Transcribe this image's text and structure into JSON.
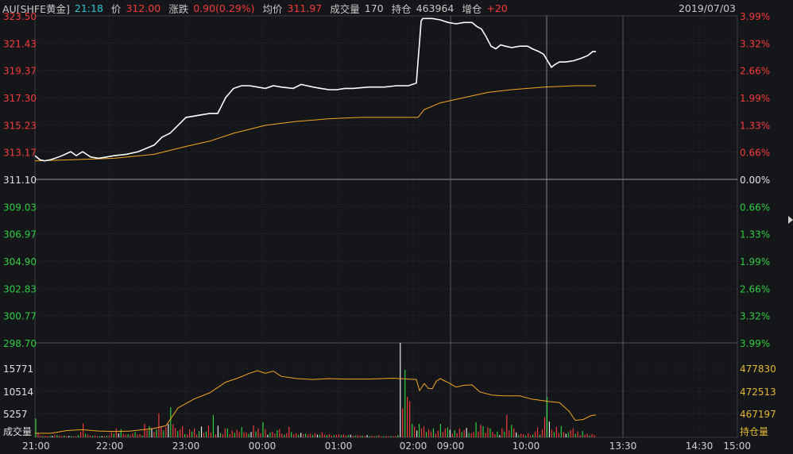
{
  "header": {
    "symbol": "AU[SHFE黄金]",
    "time": "21:18",
    "price_label": "价",
    "price": "312.00",
    "change_label": "涨跌",
    "change": "0.90(0.29%)",
    "avg_label": "均价",
    "avg": "311.97",
    "volume_label": "成交量",
    "volume": "170",
    "oi_label": "持仓",
    "oi": "463964",
    "oi_change_label": "增仓",
    "oi_change": "+20",
    "date": "2019/07/03"
  },
  "colors": {
    "up": "#f23c3c",
    "down": "#2ecc40",
    "flat": "#e8e8e8",
    "price_line": "#ffffff",
    "avg_line": "#f5a623",
    "oi_line": "#f5a623",
    "axis_volume": "#e0b830"
  },
  "chart_data": {
    "type": "line",
    "subtype": "intraday-timeshare",
    "x_ticks": [
      "21:00",
      "22:00",
      "23:00",
      "00:00",
      "01:00",
      "02:00",
      "09:00",
      "10:00",
      "13:30",
      "14:30",
      "15:00"
    ],
    "price_axis": {
      "ylim": [
        298.7,
        323.5
      ],
      "base": 311.1,
      "left_ticks": [
        "323.50",
        "321.43",
        "319.37",
        "317.30",
        "315.23",
        "313.17",
        "311.10",
        "309.03",
        "306.97",
        "304.90",
        "302.83",
        "300.77",
        "298.70"
      ],
      "right_ticks": [
        "3.99%",
        "3.32%",
        "2.66%",
        "1.99%",
        "1.33%",
        "0.66%",
        "0.00%",
        "0.66%",
        "1.33%",
        "1.99%",
        "2.66%",
        "3.32%",
        "3.99%"
      ]
    },
    "volume_axis": {
      "label": "成交量",
      "ticks": [
        "15771",
        "10514",
        "5257"
      ],
      "ylim": [
        0,
        21028
      ]
    },
    "oi_axis": {
      "label": "持仓量",
      "ticks": [
        "477830",
        "472513",
        "467197"
      ],
      "ylim": [
        461880,
        483147
      ]
    },
    "series": [
      {
        "name": "price",
        "points": [
          [
            0,
            312.9
          ],
          [
            6,
            312.6
          ],
          [
            12,
            312.5
          ],
          [
            20,
            312.6
          ],
          [
            30,
            312.8
          ],
          [
            38,
            313.0
          ],
          [
            45,
            313.2
          ],
          [
            52,
            312.9
          ],
          [
            60,
            313.2
          ],
          [
            70,
            312.8
          ],
          [
            80,
            312.7
          ],
          [
            90,
            312.8
          ],
          [
            100,
            312.9
          ],
          [
            115,
            313.0
          ],
          [
            130,
            313.2
          ],
          [
            142,
            313.5
          ],
          [
            150,
            313.7
          ],
          [
            160,
            314.3
          ],
          [
            170,
            314.6
          ],
          [
            180,
            315.2
          ],
          [
            190,
            315.8
          ],
          [
            200,
            315.9
          ],
          [
            210,
            316.0
          ],
          [
            220,
            316.1
          ],
          [
            230,
            316.1
          ],
          [
            240,
            317.3
          ],
          [
            250,
            318.0
          ],
          [
            260,
            318.2
          ],
          [
            270,
            318.2
          ],
          [
            280,
            318.1
          ],
          [
            290,
            318.0
          ],
          [
            300,
            318.2
          ],
          [
            310,
            318.1
          ],
          [
            325,
            318.0
          ],
          [
            335,
            318.3
          ],
          [
            350,
            318.1
          ],
          [
            360,
            318.0
          ],
          [
            370,
            317.9
          ],
          [
            380,
            317.9
          ],
          [
            390,
            318.0
          ],
          [
            400,
            318.0
          ],
          [
            420,
            318.1
          ],
          [
            440,
            318.1
          ],
          [
            455,
            318.2
          ],
          [
            470,
            318.2
          ],
          [
            480,
            318.4
          ],
          [
            482,
            320.0
          ],
          [
            484,
            321.5
          ],
          [
            486,
            323.1
          ],
          [
            488,
            323.3
          ],
          [
            500,
            323.3
          ],
          [
            510,
            323.2
          ],
          [
            520,
            323.0
          ],
          [
            530,
            322.9
          ],
          [
            540,
            323.0
          ],
          [
            550,
            323.0
          ],
          [
            556,
            322.7
          ],
          [
            562,
            322.5
          ],
          [
            568,
            321.9
          ],
          [
            574,
            321.2
          ],
          [
            580,
            321.0
          ],
          [
            586,
            321.3
          ],
          [
            592,
            321.2
          ],
          [
            600,
            321.1
          ],
          [
            610,
            321.2
          ],
          [
            620,
            321.2
          ],
          [
            626,
            321.0
          ],
          [
            634,
            320.8
          ],
          [
            640,
            320.6
          ],
          [
            646,
            320.0
          ],
          [
            650,
            319.6
          ],
          [
            654,
            319.8
          ],
          [
            660,
            320.0
          ],
          [
            668,
            320.0
          ],
          [
            678,
            320.1
          ],
          [
            688,
            320.3
          ],
          [
            696,
            320.5
          ],
          [
            702,
            320.8
          ],
          [
            706,
            320.8
          ]
        ]
      },
      {
        "name": "average",
        "points": [
          [
            0,
            312.5
          ],
          [
            50,
            312.6
          ],
          [
            100,
            312.7
          ],
          [
            150,
            313.0
          ],
          [
            190,
            313.6
          ],
          [
            220,
            314.0
          ],
          [
            250,
            314.6
          ],
          [
            290,
            315.2
          ],
          [
            330,
            315.5
          ],
          [
            370,
            315.7
          ],
          [
            410,
            315.8
          ],
          [
            470,
            315.8
          ],
          [
            482,
            315.8
          ],
          [
            490,
            316.4
          ],
          [
            510,
            316.9
          ],
          [
            540,
            317.3
          ],
          [
            570,
            317.7
          ],
          [
            600,
            317.9
          ],
          [
            640,
            318.1
          ],
          [
            680,
            318.2
          ],
          [
            706,
            318.2
          ]
        ]
      },
      {
        "name": "open_interest",
        "points": [
          [
            0,
            462800
          ],
          [
            20,
            462800
          ],
          [
            40,
            463400
          ],
          [
            60,
            463600
          ],
          [
            80,
            463300
          ],
          [
            100,
            463200
          ],
          [
            120,
            463300
          ],
          [
            150,
            463900
          ],
          [
            165,
            464500
          ],
          [
            180,
            468500
          ],
          [
            200,
            470500
          ],
          [
            220,
            471900
          ],
          [
            240,
            474300
          ],
          [
            255,
            475200
          ],
          [
            270,
            476300
          ],
          [
            280,
            476900
          ],
          [
            290,
            476300
          ],
          [
            300,
            476800
          ],
          [
            310,
            475600
          ],
          [
            330,
            475100
          ],
          [
            350,
            474900
          ],
          [
            370,
            475100
          ],
          [
            390,
            475000
          ],
          [
            420,
            475000
          ],
          [
            450,
            475200
          ],
          [
            470,
            475000
          ],
          [
            480,
            474900
          ],
          [
            484,
            472400
          ],
          [
            490,
            474000
          ],
          [
            495,
            472900
          ],
          [
            500,
            472800
          ],
          [
            505,
            474500
          ],
          [
            510,
            475100
          ],
          [
            520,
            474200
          ],
          [
            530,
            473200
          ],
          [
            540,
            473600
          ],
          [
            550,
            473700
          ],
          [
            560,
            472100
          ],
          [
            575,
            471400
          ],
          [
            590,
            471200
          ],
          [
            610,
            471200
          ],
          [
            625,
            470500
          ],
          [
            645,
            470000
          ],
          [
            660,
            469700
          ],
          [
            672,
            467800
          ],
          [
            680,
            465700
          ],
          [
            690,
            465900
          ],
          [
            700,
            466800
          ],
          [
            706,
            466900
          ]
        ]
      },
      {
        "name": "volume_bars",
        "values": [
          4200,
          900,
          400,
          300,
          350,
          280,
          300,
          320,
          600,
          500,
          400,
          350,
          380,
          300,
          320,
          250,
          260,
          300,
          500,
          1200,
          3100,
          800,
          600,
          400,
          350,
          450,
          300,
          280,
          260,
          320,
          350,
          400,
          1100,
          800,
          2000,
          900,
          1800,
          800,
          600,
          700,
          500,
          900,
          1200,
          600,
          700,
          400,
          3000,
          1600,
          2500,
          1900,
          1200,
          1700,
          5300,
          2300,
          1500,
          2300,
          3000,
          6700,
          2900,
          2100,
          1400,
          1800,
          2500,
          700,
          600,
          1800,
          1300,
          2000,
          600,
          1400,
          2400,
          1000,
          1300,
          2600,
          1100,
          5000,
          700,
          2600,
          1000,
          700,
          2000,
          2000,
          700,
          1500,
          1000,
          1700,
          1200,
          2300,
          1100,
          1100,
          800,
          1200,
          2700,
          1300,
          2000,
          900,
          3400,
          1800,
          600,
          1100,
          1300,
          800,
          1600,
          1800,
          800,
          600,
          900,
          2300,
          1200,
          700,
          900,
          600,
          1000,
          700,
          800,
          600,
          800,
          500,
          900,
          600,
          600,
          1100,
          600,
          500,
          700,
          400,
          500,
          600,
          700,
          500,
          700,
          400,
          500,
          600,
          400,
          400,
          500,
          400,
          400,
          300,
          500,
          300,
          350,
          300,
          300,
          500,
          250,
          250,
          300,
          250,
          260,
          280,
          300,
          500,
          22000,
          6500,
          15000,
          9000,
          8000,
          3000,
          2400,
          1500,
          3000,
          2000,
          2500,
          1200,
          1800,
          1300,
          2000,
          800,
          1500,
          3000,
          1200,
          2000,
          2200,
          1700,
          800,
          1600,
          900,
          2000,
          1200,
          1600,
          2100,
          1000,
          900,
          1200,
          3400,
          1300,
          2800,
          2500,
          1000,
          2200,
          2000,
          1200,
          700,
          1300,
          500,
          2000,
          1300,
          5000,
          1500,
          2800,
          2000,
          1100,
          500,
          800,
          700,
          400,
          900,
          500,
          600,
          1300,
          2200,
          600,
          1800,
          4500,
          9000,
          3500,
          1700,
          1200,
          2300,
          1000,
          2500,
          1200,
          800,
          1100,
          1600,
          2000,
          800,
          1300,
          500,
          1400,
          600,
          800,
          400,
          700,
          500
        ]
      }
    ]
  }
}
